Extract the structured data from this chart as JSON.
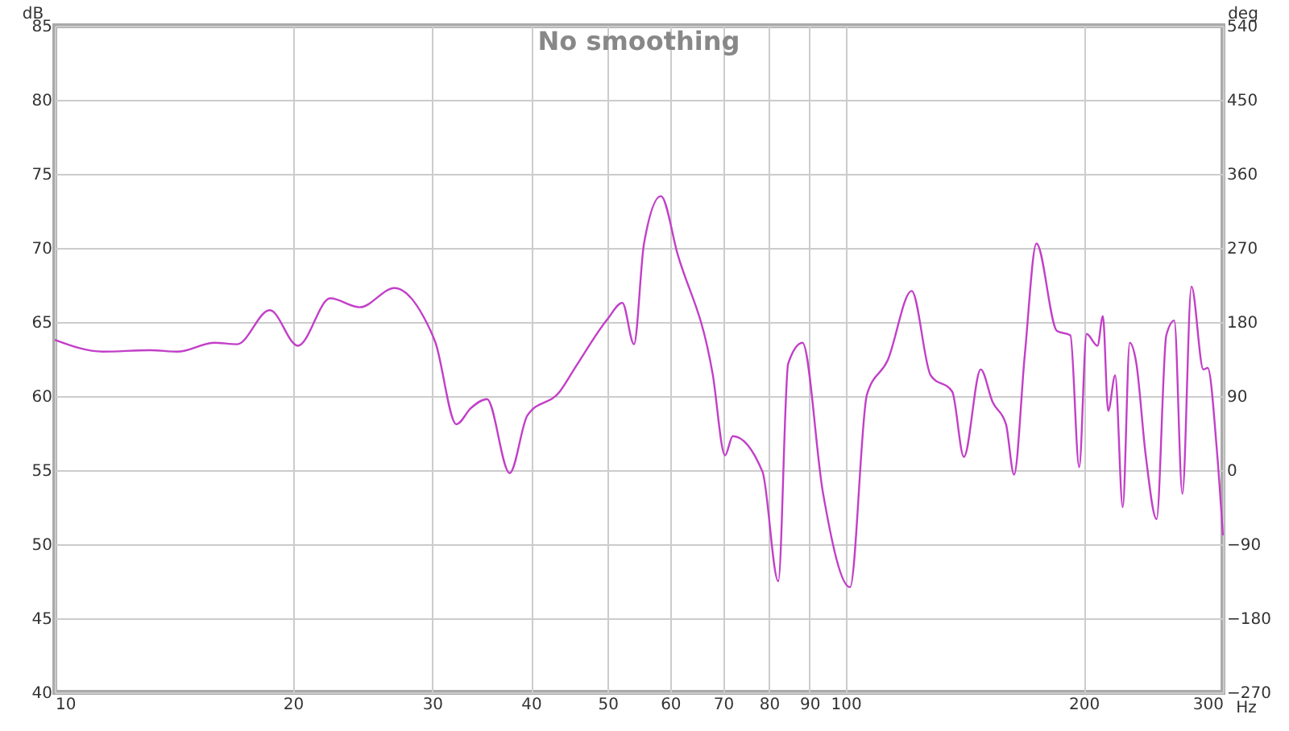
{
  "chart_data": {
    "type": "line",
    "title": "No smoothing",
    "xlabel": "Hz",
    "ylabel": "dB",
    "y2label": "deg",
    "log": "x",
    "grid": true,
    "xlim": [
      10,
      300
    ],
    "xticks": [
      10,
      20,
      30,
      40,
      50,
      60,
      70,
      80,
      90,
      100,
      200,
      300
    ],
    "ylim": [
      40,
      85
    ],
    "yticks": [
      40,
      45,
      50,
      55,
      60,
      65,
      70,
      75,
      80,
      85
    ],
    "y2lim": [
      -270,
      540
    ],
    "y2ticks": [
      -270,
      -180,
      -90,
      0,
      90,
      180,
      270,
      360,
      450,
      540
    ],
    "x": [
      10.0,
      11.5,
      13.2,
      14.3,
      15.9,
      17.0,
      18.7,
      20.3,
      22.3,
      24.3,
      26.9,
      29.3,
      30.3,
      32.2,
      33.6,
      35.2,
      37.6,
      39.6,
      43.5,
      45.6,
      50.0,
      52.2,
      54.0,
      55.6,
      58.4,
      61.3,
      67.9,
      70.4,
      72.0,
      78.5,
      82.2,
      84.6,
      88.2,
      93.6,
      101.3,
      106.4,
      113.0,
      121.2,
      128.1,
      136.4,
      141.1,
      148.2,
      153.4,
      159.5,
      163.3,
      168.5,
      174.3,
      185.0,
      192.4,
      197.4,
      201.7,
      208.2,
      211.5,
      214.8,
      219.2,
      224.1,
      228.7,
      233.0,
      239.6,
      247.3,
      254.4,
      260.4,
      266.6,
      273.7,
      283.4,
      287.0,
      294.7,
      300
    ],
    "series": [
      {
        "color": "#c23fc8",
        "values": [
          63.8,
          63.0,
          63.1,
          63.0,
          63.6,
          63.5,
          65.8,
          63.4,
          66.6,
          66.0,
          67.3,
          65.3,
          63.6,
          58.1,
          59.2,
          59.8,
          54.8,
          58.7,
          60.3,
          62.0,
          65.2,
          66.3,
          63.5,
          70.3,
          73.5,
          69.6,
          61.5,
          56.0,
          57.3,
          54.9,
          47.5,
          62.2,
          63.6,
          53.5,
          47.1,
          60.1,
          62.4,
          67.1,
          61.4,
          60.3,
          55.9,
          61.8,
          59.6,
          58.1,
          54.7,
          62.8,
          70.3,
          64.4,
          64.1,
          55.2,
          64.2,
          63.4,
          65.4,
          59.0,
          61.4,
          52.5,
          63.6,
          62.3,
          56.0,
          51.7,
          64.1,
          65.1,
          53.4,
          67.4,
          61.8,
          61.9,
          56.4,
          50.6
        ]
      }
    ]
  }
}
